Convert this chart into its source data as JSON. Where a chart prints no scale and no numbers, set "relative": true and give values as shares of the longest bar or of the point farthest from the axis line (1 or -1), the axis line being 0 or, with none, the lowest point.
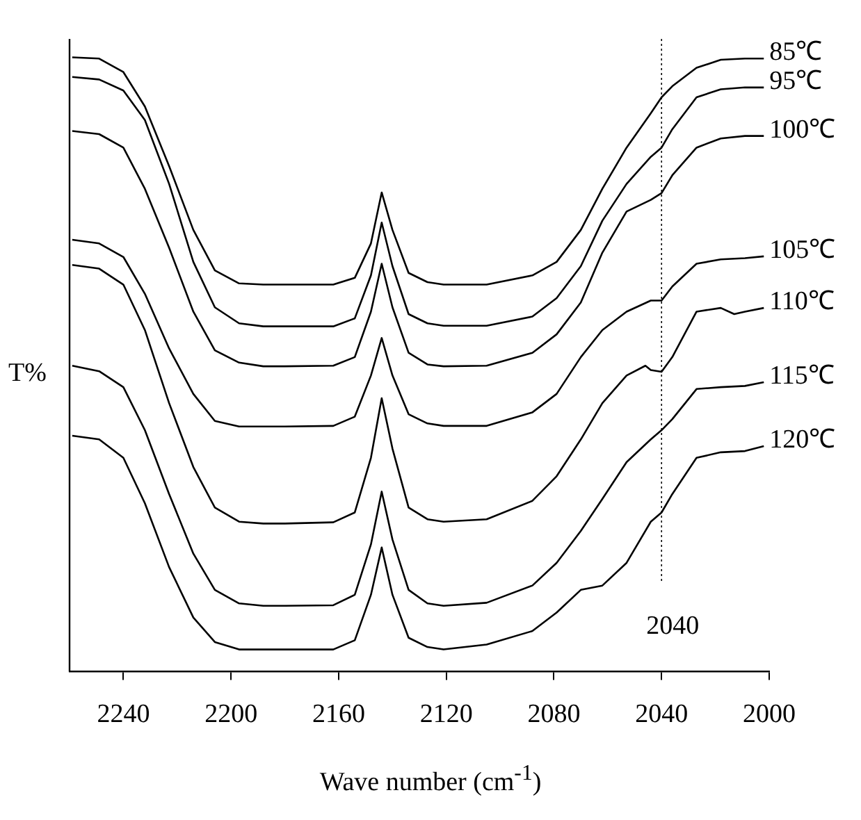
{
  "chart_data": {
    "type": "line",
    "relative": true,
    "xlabel": "Wave number (cm$^{-1}$)",
    "ylabel": "T%",
    "xlim": [
      2260,
      2000
    ],
    "xticks": [
      2240,
      2200,
      2160,
      2120,
      2080,
      2040,
      2000
    ],
    "grid": false,
    "legend": false,
    "marker": "none",
    "line_style": "solid",
    "ref_lines": [
      {
        "axis": "x",
        "value": 2040,
        "label": "2040",
        "line_style": "dotted"
      }
    ],
    "x": [
      2259,
      2249,
      2240,
      2232,
      2223,
      2214,
      2206,
      2197,
      2188,
      2180,
      2162,
      2154,
      2148,
      2144,
      2140,
      2134,
      2127,
      2121,
      2105,
      2088,
      2079,
      2070,
      2062,
      2053,
      2044,
      2040,
      2036,
      2027,
      2018,
      2009,
      2002
    ],
    "series": [
      {
        "name": "85℃",
        "color": "#000000",
        "values": [
          1.0,
          0.998,
          0.976,
          0.92,
          0.823,
          0.719,
          0.653,
          0.632,
          0.63,
          0.63,
          0.63,
          0.641,
          0.697,
          0.78,
          0.719,
          0.649,
          0.634,
          0.63,
          0.63,
          0.645,
          0.667,
          0.719,
          0.786,
          0.853,
          0.909,
          0.935,
          0.953,
          0.983,
          0.996,
          0.998,
          0.998
        ]
      },
      {
        "name": "95℃",
        "color": "#000000",
        "values": [
          0.968,
          0.964,
          0.946,
          0.898,
          0.794,
          0.667,
          0.593,
          0.567,
          0.562,
          0.562,
          0.562,
          0.575,
          0.645,
          0.731,
          0.66,
          0.582,
          0.567,
          0.563,
          0.563,
          0.578,
          0.608,
          0.66,
          0.734,
          0.794,
          0.838,
          0.853,
          0.883,
          0.935,
          0.948,
          0.951,
          0.951
        ]
      },
      {
        "name": "100℃",
        "color": "#000000",
        "values": [
          0.88,
          0.875,
          0.853,
          0.786,
          0.69,
          0.586,
          0.523,
          0.503,
          0.497,
          0.497,
          0.498,
          0.512,
          0.586,
          0.664,
          0.593,
          0.519,
          0.5,
          0.497,
          0.498,
          0.519,
          0.549,
          0.601,
          0.682,
          0.749,
          0.768,
          0.779,
          0.808,
          0.853,
          0.868,
          0.872,
          0.872
        ]
      },
      {
        "name": "105℃",
        "color": "#000000",
        "values": [
          0.703,
          0.697,
          0.675,
          0.615,
          0.526,
          0.452,
          0.408,
          0.399,
          0.399,
          0.399,
          0.4,
          0.415,
          0.482,
          0.543,
          0.482,
          0.419,
          0.404,
          0.4,
          0.4,
          0.422,
          0.452,
          0.512,
          0.556,
          0.586,
          0.604,
          0.604,
          0.627,
          0.664,
          0.671,
          0.673,
          0.676
        ]
      },
      {
        "name": "110℃",
        "color": "#000000",
        "x": [
          2259,
          2249,
          2240,
          2232,
          2223,
          2214,
          2206,
          2197,
          2188,
          2180,
          2162,
          2154,
          2148,
          2144,
          2140,
          2134,
          2127,
          2121,
          2105,
          2088,
          2079,
          2070,
          2062,
          2053,
          2046,
          2044,
          2040,
          2036,
          2027,
          2018,
          2013,
          2009,
          2002
        ],
        "values": [
          0.662,
          0.656,
          0.63,
          0.556,
          0.437,
          0.333,
          0.267,
          0.244,
          0.241,
          0.241,
          0.243,
          0.259,
          0.348,
          0.445,
          0.363,
          0.267,
          0.248,
          0.244,
          0.248,
          0.278,
          0.318,
          0.378,
          0.437,
          0.482,
          0.498,
          0.491,
          0.488,
          0.512,
          0.586,
          0.592,
          0.582,
          0.586,
          0.592
        ]
      },
      {
        "name": "115℃",
        "color": "#000000",
        "values": [
          0.498,
          0.489,
          0.463,
          0.393,
          0.289,
          0.192,
          0.133,
          0.111,
          0.107,
          0.107,
          0.108,
          0.125,
          0.207,
          0.293,
          0.215,
          0.133,
          0.111,
          0.107,
          0.112,
          0.14,
          0.177,
          0.229,
          0.281,
          0.341,
          0.378,
          0.393,
          0.411,
          0.46,
          0.463,
          0.465,
          0.471
        ]
      },
      {
        "name": "120℃",
        "color": "#000000",
        "values": [
          0.384,
          0.378,
          0.348,
          0.274,
          0.17,
          0.088,
          0.048,
          0.036,
          0.036,
          0.036,
          0.036,
          0.051,
          0.125,
          0.202,
          0.125,
          0.055,
          0.04,
          0.036,
          0.044,
          0.066,
          0.096,
          0.133,
          0.14,
          0.177,
          0.244,
          0.259,
          0.289,
          0.348,
          0.357,
          0.359,
          0.367
        ]
      }
    ]
  }
}
